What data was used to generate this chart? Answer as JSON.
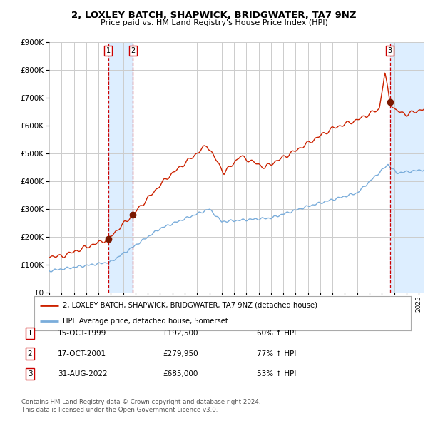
{
  "title": "2, LOXLEY BATCH, SHAPWICK, BRIDGWATER, TA7 9NZ",
  "subtitle": "Price paid vs. HM Land Registry's House Price Index (HPI)",
  "legend_label_red": "2, LOXLEY BATCH, SHAPWICK, BRIDGWATER, TA7 9NZ (detached house)",
  "legend_label_blue": "HPI: Average price, detached house, Somerset",
  "footer1": "Contains HM Land Registry data © Crown copyright and database right 2024.",
  "footer2": "This data is licensed under the Open Government Licence v3.0.",
  "transactions": [
    {
      "num": 1,
      "date": "15-OCT-1999",
      "price": "£192,500",
      "pct": "60% ↑ HPI",
      "year": 1999.79
    },
    {
      "num": 2,
      "date": "17-OCT-2001",
      "price": "£279,950",
      "pct": "77% ↑ HPI",
      "year": 2001.79
    },
    {
      "num": 3,
      "date": "31-AUG-2022",
      "price": "£685,000",
      "pct": "53% ↑ HPI",
      "year": 2022.66
    }
  ],
  "hpi_color": "#7aaddb",
  "price_color": "#cc2200",
  "marker_color": "#7a1800",
  "vline_color": "#cc0000",
  "shade_color": "#ddeeff",
  "grid_color": "#cccccc",
  "bg_color": "#ffffff",
  "ylim": [
    0,
    900000
  ],
  "xmin": 1995.0,
  "xmax": 2025.4
}
